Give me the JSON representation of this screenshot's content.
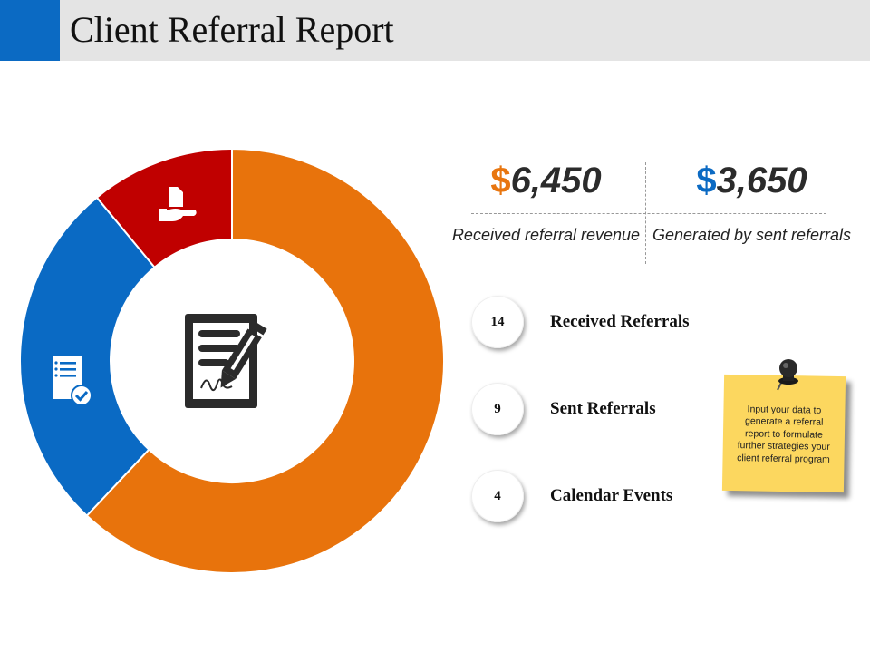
{
  "header": {
    "title": "Client Referral Report"
  },
  "stats": [
    {
      "symbol": "$",
      "amount": "6,450",
      "caption": "Received referral revenue",
      "symbol_color": "#e87610"
    },
    {
      "symbol": "$",
      "amount": "3,650",
      "caption": "Generated by sent referrals",
      "symbol_color": "#0b6ac3"
    }
  ],
  "metrics": [
    {
      "value": "14",
      "label": "Received Referrals"
    },
    {
      "value": "9",
      "label": "Sent Referrals"
    },
    {
      "value": "4",
      "label": "Calendar Events"
    }
  ],
  "note": {
    "text": "Input your data to generate a referral report to formulate further strategies your client referral program"
  },
  "chart_data": {
    "type": "pie",
    "segments": [
      {
        "value": 62,
        "color": "#e8730c",
        "icon": "phone-icon"
      },
      {
        "value": 27,
        "color": "#0a6ac4",
        "icon": "checklist-icon"
      },
      {
        "value": 11,
        "color": "#c00000",
        "icon": "hand-document-icon"
      }
    ],
    "center_icon": "contract-signature-icon"
  },
  "colors": {
    "accent_blue": "#0b6ac3",
    "accent_orange": "#e87610",
    "header_bg": "#e4e4e4",
    "note_bg": "#fcd75f"
  }
}
